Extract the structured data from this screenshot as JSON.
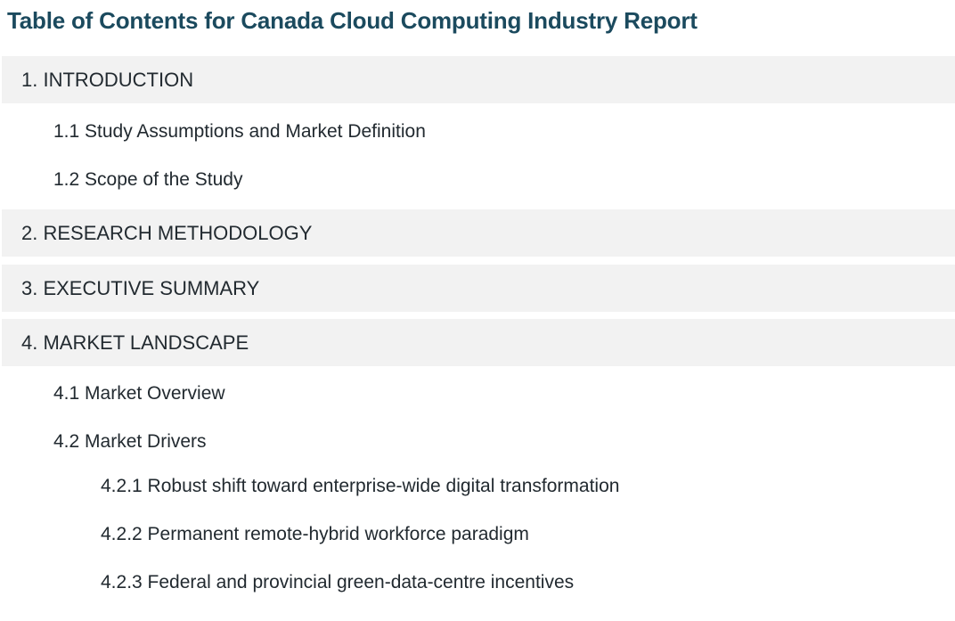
{
  "toc": {
    "title": "Table of Contents for Canada Cloud Computing Industry Report",
    "sections": {
      "introduction": {
        "label": "1. INTRODUCTION",
        "items": [
          "1.1 Study Assumptions and Market Definition",
          "1.2 Scope of the Study"
        ]
      },
      "research_methodology": {
        "label": "2. RESEARCH METHODOLOGY"
      },
      "executive_summary": {
        "label": "3. EXECUTIVE SUMMARY"
      },
      "market_landscape": {
        "label": "4. MARKET LANDSCAPE",
        "items": [
          "4.1 Market Overview",
          "4.2 Market Drivers"
        ],
        "drivers": [
          "4.2.1 Robust shift toward enterprise-wide digital transformation",
          "4.2.2 Permanent remote-hybrid workforce paradigm",
          "4.2.3 Federal and provincial green-data-centre incentives"
        ]
      }
    }
  }
}
